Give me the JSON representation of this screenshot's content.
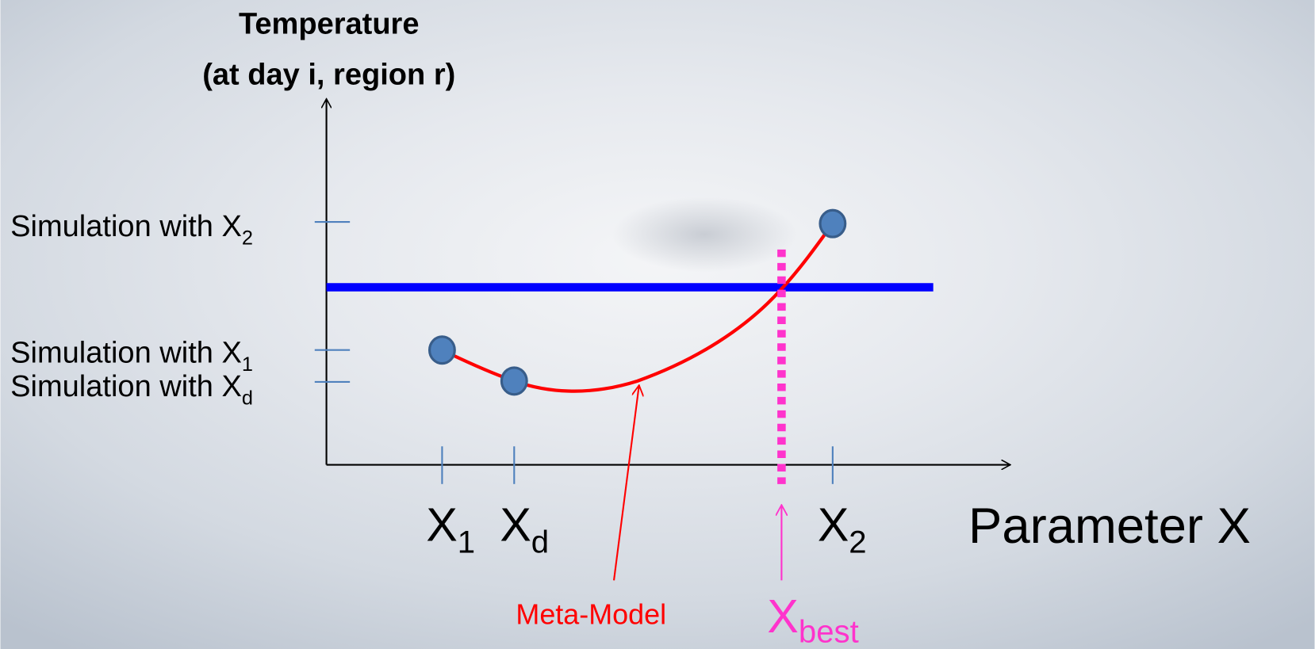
{
  "y_axis_title": [
    "Temperature",
    "(at day i, region r)"
  ],
  "y_labels": [
    {
      "text": "Simulation with X",
      "sub": "2"
    },
    {
      "text": "Simulation with X",
      "sub": "1"
    },
    {
      "text": "Simulation with X",
      "sub": "d"
    }
  ],
  "x_labels": [
    {
      "text": "X",
      "sub": "1"
    },
    {
      "text": "X",
      "sub": "d"
    },
    {
      "text": "X",
      "sub": "2"
    }
  ],
  "x_axis_title": "Parameter X",
  "annotations": {
    "meta_model": "Meta-Model",
    "best": {
      "text": "X",
      "sub": "best"
    }
  }
}
